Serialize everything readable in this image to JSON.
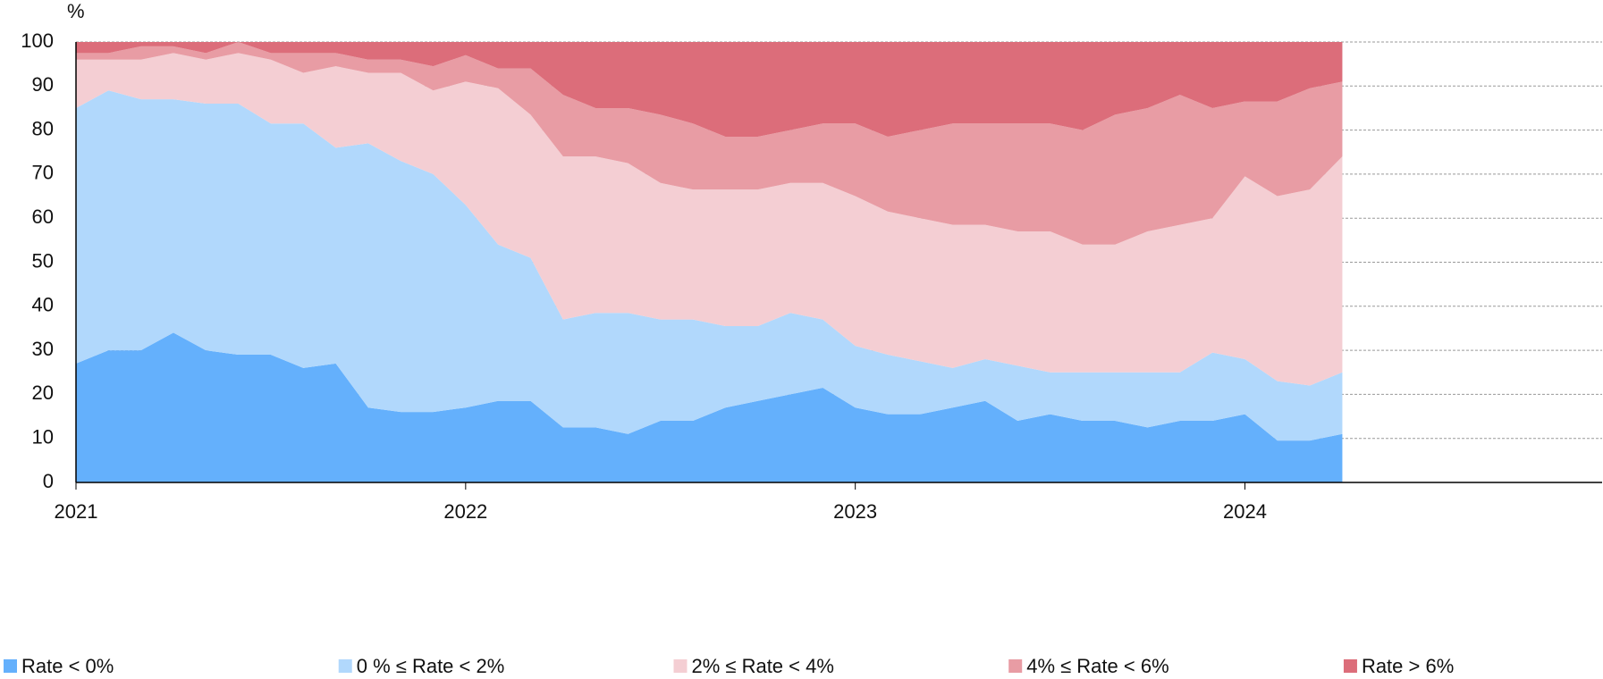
{
  "chart_data": {
    "type": "stacked_area",
    "y_label": "%",
    "x": [
      0,
      1,
      2,
      3,
      4,
      5,
      6,
      7,
      8,
      9,
      10,
      11,
      12,
      13,
      14,
      15,
      16,
      17,
      18,
      19,
      20,
      21,
      22,
      23,
      24,
      25,
      26,
      27,
      28,
      29,
      30,
      31,
      32,
      33,
      34,
      35,
      36,
      37,
      38,
      39
    ],
    "xlim": [
      0,
      47
    ],
    "xticks": [
      {
        "value": 0,
        "label": "2021"
      },
      {
        "value": 12,
        "label": "2022"
      },
      {
        "value": 24,
        "label": "2023"
      },
      {
        "value": 36,
        "label": "2024"
      }
    ],
    "ylim": [
      0,
      100
    ],
    "yticks": [
      0,
      10,
      20,
      30,
      40,
      50,
      60,
      70,
      80,
      90,
      100
    ],
    "grid": true,
    "legend": "bottom",
    "series": [
      {
        "name": "Rate < 0%",
        "color": "#64b0fc",
        "values": [
          27,
          30,
          30,
          34,
          30,
          29,
          29,
          26,
          27,
          17,
          16,
          16,
          17,
          18.5,
          18.5,
          12.5,
          12.5,
          11,
          14,
          14,
          17,
          18.5,
          20,
          21.5,
          17,
          15.5,
          15.5,
          17,
          18.5,
          14,
          15.5,
          14,
          14,
          12.5,
          14,
          14,
          15.5,
          9.5,
          9.5,
          11
        ]
      },
      {
        "name": "0 % ≤ Rate < 2%",
        "color": "#b1d8fc",
        "values": [
          58,
          59,
          57,
          53,
          56,
          57,
          52.5,
          55.5,
          49,
          60,
          57,
          54,
          46,
          35.5,
          32.5,
          24.5,
          26,
          27.5,
          23,
          23,
          18.5,
          17,
          18.5,
          15.5,
          14,
          13.5,
          12,
          9,
          9.5,
          12.5,
          9.5,
          11,
          11,
          12.5,
          11,
          15.5,
          12.5,
          13.5,
          12.5,
          14
        ]
      },
      {
        "name": "2% ≤ Rate < 4%",
        "color": "#f4ced3",
        "values": [
          11,
          7,
          9,
          10.5,
          10,
          11.5,
          14.5,
          11.5,
          18.5,
          16,
          20,
          19,
          28,
          35.5,
          32.5,
          37,
          35.5,
          34,
          31,
          29.5,
          31,
          31,
          29.5,
          31,
          34,
          32.5,
          32.5,
          32.5,
          30.5,
          30.5,
          32,
          29,
          29,
          32,
          33.5,
          30.5,
          41.5,
          42,
          44.5,
          49
        ]
      },
      {
        "name": "4% ≤ Rate < 6%",
        "color": "#e89ca4",
        "values": [
          1.5,
          1.5,
          3,
          1.5,
          1.5,
          2.5,
          1.5,
          4.5,
          3,
          3,
          3,
          5.5,
          6,
          4.5,
          10.5,
          14,
          11,
          12.5,
          15.5,
          15,
          12,
          12,
          12,
          13.5,
          16.5,
          17,
          20,
          23,
          23,
          24.5,
          24.5,
          26,
          29.5,
          28,
          29.5,
          25,
          17,
          21.5,
          23,
          17
        ]
      },
      {
        "name": "Rate > 6%",
        "color": "#dc6d7a",
        "values": [
          2.5,
          2.5,
          1,
          1,
          2.5,
          0,
          2.5,
          2.5,
          2.5,
          4,
          4,
          5.5,
          3,
          6,
          6,
          12,
          15,
          15,
          16.5,
          18.5,
          21.5,
          21.5,
          20,
          18.5,
          18.5,
          21.5,
          20,
          18.5,
          18.5,
          18.5,
          18.5,
          20,
          16.5,
          15,
          12,
          15,
          13.5,
          13.5,
          10.5,
          9
        ]
      }
    ]
  }
}
